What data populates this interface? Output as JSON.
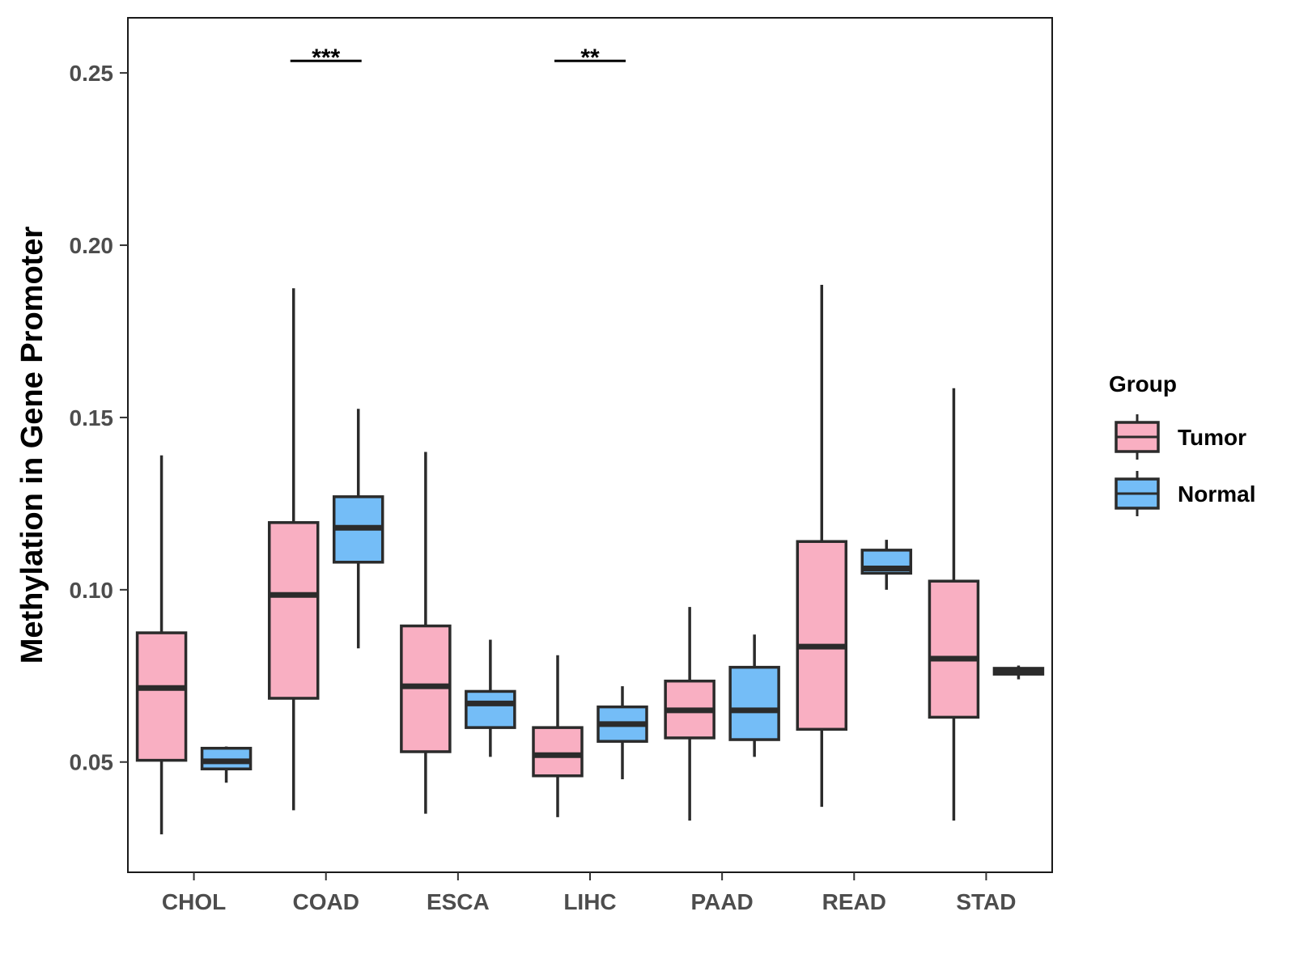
{
  "chart_data": {
    "type": "boxplot",
    "title": "",
    "xlabel": "",
    "ylabel": "Methylation in Gene Promoter",
    "ylim": [
      0.018,
      0.266
    ],
    "yticks": [
      0.05,
      0.1,
      0.15,
      0.2,
      0.25
    ],
    "ytick_labels": [
      "0.05",
      "0.10",
      "0.15",
      "0.20",
      "0.25"
    ],
    "categories": [
      "CHOL",
      "COAD",
      "ESCA",
      "LIHC",
      "PAAD",
      "READ",
      "STAD"
    ],
    "grid": false,
    "legend": {
      "title": "Group",
      "position": "right"
    },
    "series": [
      {
        "name": "Tumor",
        "color": "#F9AFC2",
        "boxes": [
          {
            "min": 0.029,
            "q1": 0.0505,
            "median": 0.0715,
            "q3": 0.0875,
            "max": 0.139
          },
          {
            "min": 0.036,
            "q1": 0.0685,
            "median": 0.0985,
            "q3": 0.1195,
            "max": 0.1875
          },
          {
            "min": 0.035,
            "q1": 0.053,
            "median": 0.072,
            "q3": 0.0895,
            "max": 0.14
          },
          {
            "min": 0.034,
            "q1": 0.046,
            "median": 0.052,
            "q3": 0.06,
            "max": 0.081
          },
          {
            "min": 0.033,
            "q1": 0.057,
            "median": 0.065,
            "q3": 0.0735,
            "max": 0.095
          },
          {
            "min": 0.037,
            "q1": 0.0595,
            "median": 0.0835,
            "q3": 0.114,
            "max": 0.1885
          },
          {
            "min": 0.033,
            "q1": 0.063,
            "median": 0.08,
            "q3": 0.1025,
            "max": 0.1585
          }
        ]
      },
      {
        "name": "Normal",
        "color": "#74BDF7",
        "boxes": [
          {
            "min": 0.044,
            "q1": 0.048,
            "median": 0.0502,
            "q3": 0.054,
            "max": 0.0545
          },
          {
            "min": 0.083,
            "q1": 0.108,
            "median": 0.118,
            "q3": 0.127,
            "max": 0.1525
          },
          {
            "min": 0.0515,
            "q1": 0.06,
            "median": 0.067,
            "q3": 0.0705,
            "max": 0.0855
          },
          {
            "min": 0.045,
            "q1": 0.056,
            "median": 0.061,
            "q3": 0.066,
            "max": 0.072
          },
          {
            "min": 0.0515,
            "q1": 0.0565,
            "median": 0.065,
            "q3": 0.0775,
            "max": 0.087
          },
          {
            "min": 0.1,
            "q1": 0.1048,
            "median": 0.1062,
            "q3": 0.1115,
            "max": 0.1145
          },
          {
            "min": 0.074,
            "q1": 0.0755,
            "median": 0.0762,
            "q3": 0.0772,
            "max": 0.078
          }
        ]
      }
    ],
    "annotations": [
      {
        "category": "COAD",
        "label": "***",
        "y": 0.2535
      },
      {
        "category": "LIHC",
        "label": "**",
        "y": 0.2535
      }
    ]
  }
}
